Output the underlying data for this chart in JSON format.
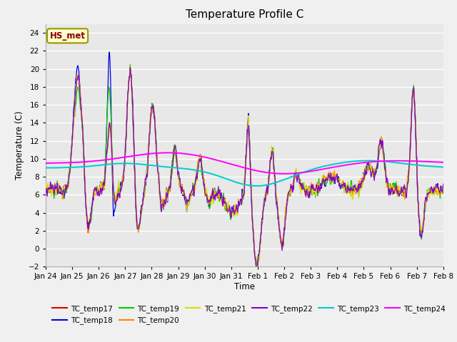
{
  "title": "Temperature Profile C",
  "xlabel": "Time",
  "ylabel": "Temperature (C)",
  "ylim": [
    -2,
    25
  ],
  "yticks": [
    -2,
    0,
    2,
    4,
    6,
    8,
    10,
    12,
    14,
    16,
    18,
    20,
    22,
    24
  ],
  "x_labels": [
    "Jan 24",
    "Jan 25",
    "Jan 26",
    "Jan 27",
    "Jan 28",
    "Jan 29",
    "Jan 30",
    "Jan 31",
    "Feb 1",
    "Feb 2",
    "Feb 3",
    "Feb 4",
    "Feb 5",
    "Feb 6",
    "Feb 7",
    "Feb 8"
  ],
  "legend_label": "HS_met",
  "series_colors": {
    "TC_temp17": "#dd0000",
    "TC_temp18": "#0000dd",
    "TC_temp19": "#00cc00",
    "TC_temp20": "#ff8800",
    "TC_temp21": "#dddd00",
    "TC_temp22": "#8800cc",
    "TC_temp23": "#00cccc",
    "TC_temp24": "#ff00ff"
  },
  "fig_facecolor": "#f0f0f0",
  "ax_facecolor": "#e8e8e8",
  "grid_color": "#ffffff",
  "annotation_box_facecolor": "#ffffcc",
  "annotation_box_edgecolor": "#999900",
  "annotation_text_color": "#880000"
}
